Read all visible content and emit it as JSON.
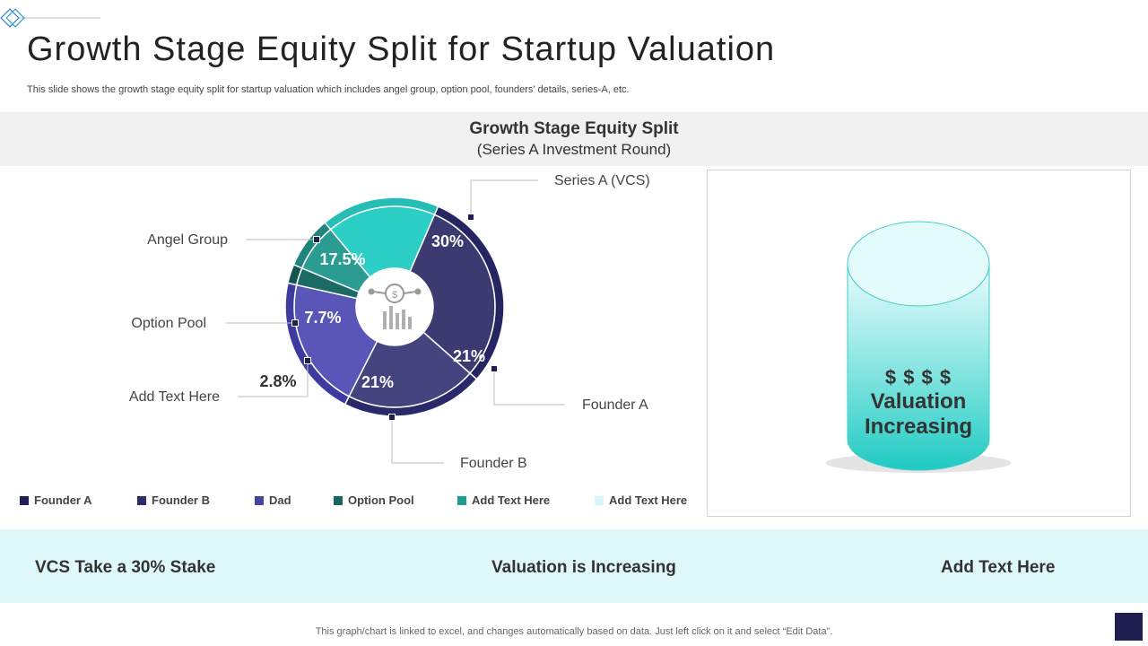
{
  "slide": {
    "title": "Growth Stage Equity Split for Startup Valuation",
    "subtitle": "This slide shows the growth stage equity split for startup valuation which includes angel group, option pool, founders’ details, series-A, etc.",
    "footer": "This graph/chart is linked to excel,  and changes automatically based on data. Just left click on it and select “Edit Data”."
  },
  "chart_data": {
    "type": "pie",
    "title": "Growth  Stage Equity Split",
    "subtitle": "(Series A Investment Round)",
    "slices": [
      {
        "value": 30,
        "label": "30%",
        "callout": "Series A (VCS)",
        "color": "#3b3b72",
        "ring": "#252562"
      },
      {
        "value": 21,
        "label": "21%",
        "callout": "Founder A",
        "color": "#44447f",
        "ring": "#2a2a6a"
      },
      {
        "value": 21,
        "label": "21%",
        "callout": "Founder B",
        "color": "#5a56b8",
        "ring": "#3e3aa0"
      },
      {
        "value": 2.8,
        "label": "2.8%",
        "callout": "Add Text Here",
        "color": "#1b6b64",
        "ring": "#135550"
      },
      {
        "value": 7.7,
        "label": "7.7%",
        "callout": "Option Pool",
        "color": "#2a9c92",
        "ring": "#1f857c"
      },
      {
        "value": 17.5,
        "label": "17.5%",
        "callout": "Angel Group",
        "color": "#2ccfc6",
        "ring": "#26bdb4"
      }
    ],
    "legend": [
      {
        "label": "Founder A",
        "color": "#1f1f52"
      },
      {
        "label": "Founder B",
        "color": "#2b2b70"
      },
      {
        "label": "Dad",
        "color": "#4545a0"
      },
      {
        "label": "Option Pool",
        "color": "#176660"
      },
      {
        "label": "Add Text Here",
        "color": "#1e9b92"
      },
      {
        "label": "Add Text Here",
        "color": "#d6f7f9"
      }
    ]
  },
  "cylinder": {
    "dollars": "$ $ $ $",
    "line1": "Valuation",
    "line2": "Increasing"
  },
  "stats": [
    {
      "text": "VCS Take a 30% Stake"
    },
    {
      "text": "Valuation is Increasing"
    },
    {
      "text": "Add Text Here"
    }
  ]
}
